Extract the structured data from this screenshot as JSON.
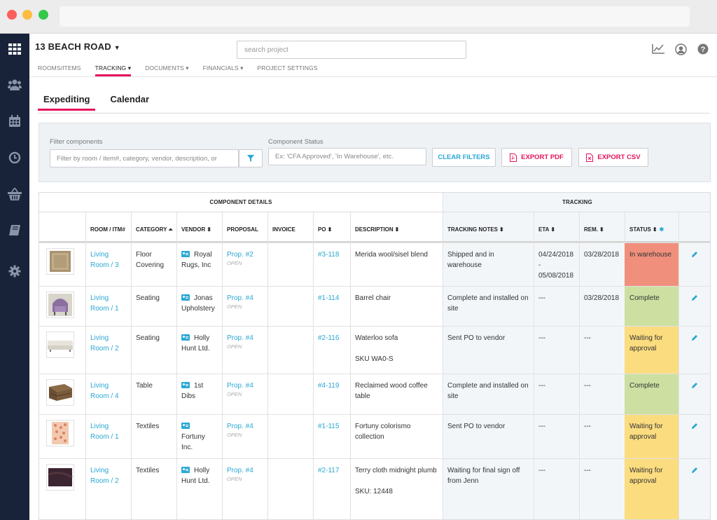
{
  "project": {
    "name": "13 BEACH ROAD"
  },
  "search": {
    "placeholder": "search project"
  },
  "nav": [
    {
      "label": "ROOMS/ITEMS"
    },
    {
      "label": "TRACKING ▾"
    },
    {
      "label": "DOCUMENTS ▾"
    },
    {
      "label": "FINANCIALS ▾"
    },
    {
      "label": "PROJECT SETTINGS"
    }
  ],
  "tabs": [
    {
      "label": "Expediting"
    },
    {
      "label": "Calendar"
    }
  ],
  "filters": {
    "components_label": "Filter components",
    "components_placeholder": "Filter by room / item#, category, vendor, description, or",
    "status_label": "Component Status",
    "status_placeholder": "Ex: 'CFA Approved', 'In Warehouse', etc.",
    "clear": "CLEAR FILTERS",
    "export_pdf": "EXPORT PDF",
    "export_csv": "EXPORT CSV"
  },
  "table": {
    "group_details": "COMPONENT DETAILS",
    "group_tracking": "TRACKING",
    "headers": {
      "room": "ROOM / ITM#",
      "category": "CATEGORY",
      "vendor": "VENDOR",
      "proposal": "PROPOSAL",
      "invoice": "INVOICE",
      "po": "PO",
      "description": "DESCRIPTION",
      "tracking_notes": "TRACKING NOTES",
      "eta": "ETA",
      "rem": "REM.",
      "status": "STATUS"
    },
    "rows": [
      {
        "room": "Living",
        "room2": "Room / 3",
        "category": "Floor Covering",
        "vendor": "Royal Rugs, Inc",
        "proposal": "Prop. #2",
        "proposal_state": "OPEN",
        "po": "#3-118",
        "description": "Merida wool/sisel blend",
        "desc2": "",
        "notes": "Shipped and in warehouse",
        "eta": "04/24/2018 - 05/08/2018",
        "rem": "03/28/2018",
        "status": "In warehouse",
        "status_color": "#f0907c",
        "thumb": "rug"
      },
      {
        "room": "Living",
        "room2": "Room / 1",
        "category": "Seating",
        "vendor": "Jonas Upholstery",
        "proposal": "Prop. #4",
        "proposal_state": "OPEN",
        "po": "#1-114",
        "description": "Barrel chair",
        "desc2": "",
        "notes": "Complete and installed on site",
        "eta": "---",
        "rem": "03/28/2018",
        "status": "Complete",
        "status_color": "#cde0a2",
        "thumb": "chair"
      },
      {
        "room": "Living",
        "room2": "Room / 2",
        "category": "Seating",
        "vendor": "Holly Hunt Ltd.",
        "proposal": "Prop. #4",
        "proposal_state": "OPEN",
        "po": "#2-116",
        "description": "Waterloo sofa",
        "desc2": "SKU WA0-S",
        "notes": "Sent PO to vendor",
        "eta": "---",
        "rem": "---",
        "status": "Waiting for approval",
        "status_color": "#fbdc7f",
        "thumb": "sofa"
      },
      {
        "room": "Living",
        "room2": "Room / 4",
        "category": "Table",
        "vendor": "1st Dibs",
        "proposal": "Prop. #4",
        "proposal_state": "OPEN",
        "po": "#4-119",
        "description": "Reclaimed wood coffee table",
        "desc2": "",
        "notes": "Complete and installed on site",
        "eta": "---",
        "rem": "---",
        "status": "Complete",
        "status_color": "#cde0a2",
        "thumb": "table"
      },
      {
        "room": "Living",
        "room2": "Room / 1",
        "category": "Textiles",
        "vendor": "Fortuny Inc.",
        "proposal": "Prop. #4",
        "proposal_state": "OPEN",
        "po": "#1-115",
        "description": "Fortuny colorismo collection",
        "desc2": "",
        "notes": "Sent PO to vendor",
        "eta": "---",
        "rem": "---",
        "status": "Waiting for approval",
        "status_color": "#fbdc7f",
        "thumb": "textile"
      },
      {
        "room": "Living",
        "room2": "Room / 2",
        "category": "Textiles",
        "vendor": "Holly Hunt Ltd.",
        "proposal": "Prop. #4",
        "proposal_state": "OPEN",
        "po": "#2-117",
        "description": "Terry cloth midnight plumb",
        "desc2": "SKU: 12448",
        "notes": "Waiting for final sign off from Jenn",
        "eta": "---",
        "rem": "---",
        "status": "Waiting for approval",
        "status_color": "#fbdc7f",
        "thumb": "cloth"
      }
    ]
  }
}
